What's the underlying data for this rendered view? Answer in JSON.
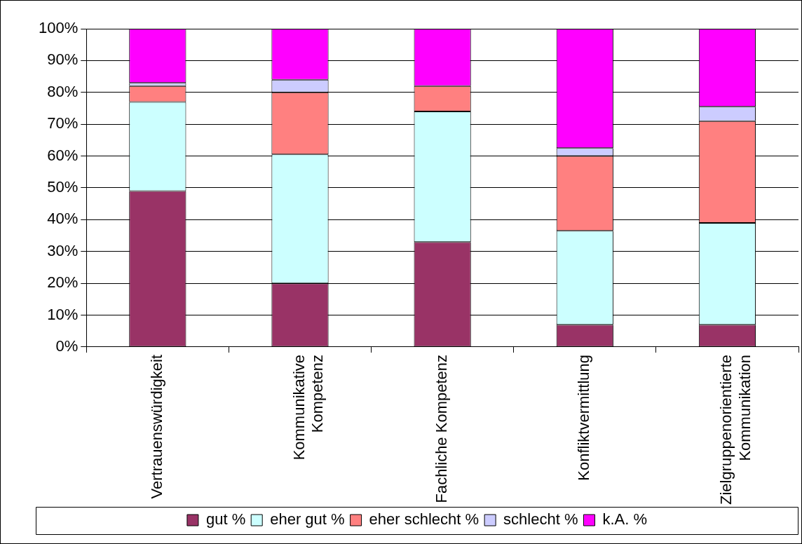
{
  "chart_data": {
    "type": "bar",
    "stacked": true,
    "categories": [
      "Vertrauenswürdigkeit",
      "Kommunikative Kompetenz",
      "Fachliche Kompetenz",
      "Konfliktvermittlung",
      "Zielgruppenorientierte Kommunikation"
    ],
    "series": [
      {
        "name": "gut %",
        "color": "#993366",
        "values": [
          49,
          20,
          33,
          7,
          7
        ]
      },
      {
        "name": "eher gut %",
        "color": "#ccffff",
        "values": [
          28,
          40.5,
          41,
          29.5,
          32
        ]
      },
      {
        "name": "eher schlecht %",
        "color": "#ff8080",
        "values": [
          5,
          19.5,
          8,
          23.5,
          32
        ]
      },
      {
        "name": "schlecht %",
        "color": "#ccccff",
        "values": [
          1,
          4,
          null,
          2.5,
          4.5
        ]
      },
      {
        "name": "k.A. %",
        "color": "#ff00ff",
        "values": [
          17,
          16,
          18,
          37.5,
          24.5
        ]
      }
    ],
    "ylim": [
      0,
      100
    ],
    "yticks": [
      {
        "value": 0,
        "label": "0%"
      },
      {
        "value": 10,
        "label": "10%"
      },
      {
        "value": 20,
        "label": "20%"
      },
      {
        "value": 30,
        "label": "30%"
      },
      {
        "value": 40,
        "label": "40%"
      },
      {
        "value": 50,
        "label": "50%"
      },
      {
        "value": 60,
        "label": "60%"
      },
      {
        "value": 70,
        "label": "70%"
      },
      {
        "value": 80,
        "label": "80%"
      },
      {
        "value": 90,
        "label": "90%"
      },
      {
        "value": 100,
        "label": "100%"
      }
    ],
    "grid": "y",
    "legend": "bottom"
  }
}
